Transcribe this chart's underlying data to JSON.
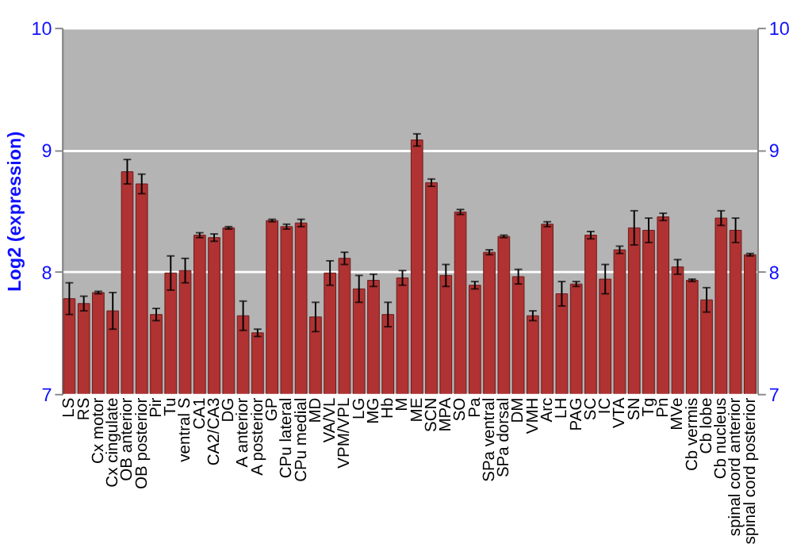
{
  "chart_data": {
    "type": "bar",
    "ylabel": "Log2 (expression)",
    "categories": [
      "LS",
      "RS",
      "Cx motor",
      "Cx cingulate",
      "OB anterior",
      "OB posterior",
      "Pir",
      "Tu",
      "ventral S",
      "CA1",
      "CA2/CA3",
      "DG",
      "A anterior",
      "A posterior",
      "GP",
      "CPu lateral",
      "CPu medial",
      "MD",
      "VA/VL",
      "VPM/VPL",
      "LG",
      "MG",
      "Hb",
      "M",
      "ME",
      "SCN",
      "MPA",
      "SO",
      "Pa",
      "SPa ventral",
      "SPa dorsal",
      "DM",
      "VMH",
      "Arc",
      "LH",
      "PAG",
      "SC",
      "IC",
      "VTA",
      "SN",
      "Tg",
      "Pn",
      "MVe",
      "Cb vermis",
      "Cb lobe",
      "Cb nucleus",
      "spinal cord anterior",
      "spinal cord posterior"
    ],
    "values": [
      7.78,
      7.74,
      7.83,
      7.68,
      8.82,
      8.72,
      7.65,
      7.99,
      8.01,
      8.3,
      8.28,
      8.36,
      7.64,
      7.5,
      8.42,
      8.37,
      8.4,
      7.63,
      7.99,
      8.11,
      7.86,
      7.93,
      7.65,
      7.95,
      9.08,
      8.73,
      7.97,
      8.49,
      7.89,
      8.16,
      8.29,
      7.96,
      7.64,
      8.39,
      7.82,
      7.9,
      8.3,
      7.94,
      8.18,
      8.36,
      8.34,
      8.45,
      8.04,
      7.93,
      7.77,
      8.44,
      8.34,
      8.14
    ],
    "errors": [
      0.13,
      0.06,
      0.01,
      0.15,
      0.1,
      0.08,
      0.05,
      0.14,
      0.1,
      0.02,
      0.03,
      0.01,
      0.12,
      0.03,
      0.01,
      0.02,
      0.03,
      0.12,
      0.1,
      0.05,
      0.11,
      0.05,
      0.1,
      0.06,
      0.05,
      0.03,
      0.09,
      0.02,
      0.03,
      0.02,
      0.01,
      0.06,
      0.04,
      0.02,
      0.1,
      0.02,
      0.03,
      0.12,
      0.03,
      0.14,
      0.1,
      0.03,
      0.06,
      0.01,
      0.1,
      0.06,
      0.1,
      0.01
    ],
    "color": "#b03232",
    "ylim": [
      7,
      10
    ],
    "yticks": [
      7,
      8,
      9,
      10
    ],
    "y2lim": [
      7,
      10
    ],
    "y2ticks": [
      7,
      8,
      9,
      10
    ],
    "grid": "y"
  }
}
